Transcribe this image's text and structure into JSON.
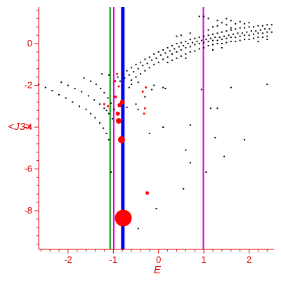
{
  "chart_data": {
    "type": "scatter",
    "xlabel": "E",
    "ylabel": "<J3>",
    "xlim": [
      -2.65,
      2.55
    ],
    "ylim": [
      -9.85,
      1.75
    ],
    "grid": false,
    "x_ticks": [
      -2,
      -1,
      0,
      1,
      2
    ],
    "y_ticks": [
      0,
      -2,
      -4,
      -6,
      -8
    ],
    "colors": {
      "axis": "#e00000",
      "dots": "#000000",
      "markers": "#ff0000",
      "line_green": "#009900",
      "line_magenta": "#dd00dd",
      "line_blue": "#0000ff",
      "line_magenta2": "#dd00dd"
    },
    "vertical_lines": [
      {
        "x": -1.07,
        "color": "#009900",
        "width": 2
      },
      {
        "x": -0.99,
        "color": "#dd00dd",
        "width": 2
      },
      {
        "x": -0.79,
        "color": "#0000ff",
        "width": 5
      },
      {
        "x": 0.99,
        "color": "#dd00dd",
        "width": 2
      }
    ],
    "red_markers": [
      {
        "x": -0.78,
        "y": -8.35,
        "size": 12
      },
      {
        "x": -0.82,
        "y": -4.6,
        "size": 5
      },
      {
        "x": -0.88,
        "y": -3.7,
        "size": 4
      },
      {
        "x": -0.9,
        "y": -3.35,
        "size": 3
      },
      {
        "x": -0.86,
        "y": -2.95,
        "size": 3
      },
      {
        "x": -0.8,
        "y": -2.8,
        "size": 3.5
      },
      {
        "x": -0.95,
        "y": -2.55,
        "size": 2
      },
      {
        "x": -0.88,
        "y": -2.05,
        "size": 1.5
      },
      {
        "x": -0.96,
        "y": -1.8,
        "size": 1.5
      },
      {
        "x": -0.92,
        "y": -1.45,
        "size": 1.5
      },
      {
        "x": -0.3,
        "y": -3.1,
        "size": 1.5
      },
      {
        "x": -0.32,
        "y": -3.35,
        "size": 1.5
      },
      {
        "x": -0.28,
        "y": -2.1,
        "size": 1.5
      },
      {
        "x": -0.35,
        "y": -2.3,
        "size": 1.5
      },
      {
        "x": -1.12,
        "y": -3.0,
        "size": 1.5
      },
      {
        "x": -1.2,
        "y": -2.9,
        "size": 1.5
      },
      {
        "x": -0.25,
        "y": -7.15,
        "size": 2.5
      }
    ],
    "black_points": {
      "curve_a": [
        [
          -2.65,
          -1.95
        ],
        [
          -2.5,
          -2.1
        ],
        [
          -2.35,
          -2.25
        ],
        [
          -2.2,
          -2.45
        ],
        [
          -2.05,
          -2.6
        ],
        [
          -1.9,
          -2.8
        ],
        [
          -1.75,
          -3.0
        ],
        [
          -1.6,
          -3.15
        ],
        [
          -1.5,
          -3.35
        ],
        [
          -1.4,
          -3.55
        ],
        [
          -1.3,
          -3.8
        ],
        [
          -1.22,
          -4.05
        ],
        [
          -1.15,
          -4.3
        ]
      ],
      "curve_b": [
        [
          -2.15,
          -1.85
        ],
        [
          -2.0,
          -2.0
        ],
        [
          -1.85,
          -2.15
        ],
        [
          -1.7,
          -2.3
        ],
        [
          -1.55,
          -2.5
        ],
        [
          -1.42,
          -2.7
        ],
        [
          -1.3,
          -2.9
        ],
        [
          -1.2,
          -3.1
        ],
        [
          -1.1,
          -3.35
        ],
        [
          -1.02,
          -3.6
        ]
      ],
      "curve_c": [
        [
          -1.65,
          -1.65
        ],
        [
          -1.5,
          -1.8
        ],
        [
          -1.38,
          -1.95
        ],
        [
          -1.28,
          -2.15
        ],
        [
          -1.2,
          -2.35
        ],
        [
          -1.12,
          -2.6
        ],
        [
          -1.05,
          -2.85
        ],
        [
          -0.98,
          -3.15
        ]
      ],
      "upper_band": [
        [
          -0.9,
          -1.6
        ],
        [
          -0.8,
          -1.45
        ],
        [
          -0.7,
          -1.3
        ],
        [
          -0.6,
          -1.15
        ],
        [
          -0.5,
          -1.0
        ],
        [
          -0.4,
          -0.9
        ],
        [
          -0.3,
          -0.75
        ],
        [
          -0.2,
          -0.65
        ],
        [
          -0.1,
          -0.5
        ],
        [
          0.0,
          -0.4
        ],
        [
          0.1,
          -0.3
        ],
        [
          0.2,
          -0.2
        ],
        [
          0.3,
          -0.1
        ],
        [
          0.4,
          0.0
        ],
        [
          0.5,
          0.05
        ],
        [
          0.6,
          0.1
        ],
        [
          0.7,
          0.2
        ],
        [
          0.8,
          0.25
        ],
        [
          0.9,
          0.3
        ],
        [
          1.0,
          0.35
        ],
        [
          1.1,
          0.4
        ],
        [
          1.2,
          0.45
        ],
        [
          1.3,
          0.5
        ],
        [
          1.4,
          0.55
        ],
        [
          1.5,
          0.6
        ],
        [
          1.6,
          0.65
        ],
        [
          1.7,
          0.7
        ],
        [
          1.8,
          0.75
        ],
        [
          1.9,
          0.75
        ],
        [
          2.0,
          0.8
        ],
        [
          2.1,
          0.8
        ],
        [
          2.2,
          0.85
        ],
        [
          2.3,
          0.85
        ],
        [
          2.4,
          0.9
        ],
        [
          2.5,
          0.9
        ],
        [
          -0.85,
          -1.8
        ],
        [
          -0.75,
          -1.65
        ],
        [
          -0.65,
          -1.5
        ],
        [
          -0.55,
          -1.35
        ],
        [
          -0.45,
          -1.2
        ],
        [
          -0.35,
          -1.05
        ],
        [
          -0.25,
          -0.95
        ],
        [
          -0.15,
          -0.8
        ],
        [
          -0.05,
          -0.7
        ],
        [
          0.05,
          -0.55
        ],
        [
          0.15,
          -0.45
        ],
        [
          0.25,
          -0.35
        ],
        [
          0.35,
          -0.25
        ],
        [
          0.45,
          -0.15
        ],
        [
          0.55,
          -0.1
        ],
        [
          0.65,
          0.0
        ],
        [
          0.75,
          0.05
        ],
        [
          0.85,
          0.1
        ],
        [
          0.95,
          0.15
        ],
        [
          1.05,
          0.2
        ],
        [
          1.15,
          0.25
        ],
        [
          1.25,
          0.3
        ],
        [
          1.35,
          0.3
        ],
        [
          1.45,
          0.35
        ],
        [
          1.55,
          0.4
        ],
        [
          1.65,
          0.45
        ],
        [
          1.75,
          0.5
        ],
        [
          1.85,
          0.5
        ],
        [
          1.95,
          0.55
        ],
        [
          2.05,
          0.6
        ],
        [
          2.15,
          0.6
        ],
        [
          2.25,
          0.65
        ],
        [
          2.35,
          0.7
        ],
        [
          2.45,
          0.7
        ],
        [
          -0.6,
          -1.75
        ],
        [
          -0.5,
          -1.6
        ],
        [
          -0.4,
          -1.45
        ],
        [
          -0.3,
          -1.3
        ],
        [
          -0.2,
          -1.15
        ],
        [
          -0.1,
          -1.0
        ],
        [
          0.0,
          -0.9
        ],
        [
          0.1,
          -0.75
        ],
        [
          0.2,
          -0.65
        ],
        [
          0.3,
          -0.5
        ],
        [
          0.4,
          -0.4
        ],
        [
          0.5,
          -0.3
        ],
        [
          0.6,
          -0.2
        ],
        [
          0.7,
          -0.15
        ],
        [
          0.8,
          -0.05
        ],
        [
          0.9,
          0.0
        ],
        [
          1.0,
          0.05
        ],
        [
          1.1,
          0.1
        ],
        [
          1.2,
          0.15
        ],
        [
          1.3,
          0.15
        ],
        [
          1.4,
          0.2
        ],
        [
          1.5,
          0.25
        ],
        [
          1.6,
          0.3
        ],
        [
          1.7,
          0.3
        ],
        [
          1.8,
          0.35
        ],
        [
          1.9,
          0.4
        ],
        [
          2.0,
          0.4
        ],
        [
          2.1,
          0.45
        ],
        [
          2.2,
          0.5
        ],
        [
          2.3,
          0.5
        ],
        [
          2.4,
          0.55
        ],
        [
          2.5,
          0.55
        ],
        [
          0.2,
          -0.9
        ],
        [
          0.3,
          -0.8
        ],
        [
          0.4,
          -0.7
        ],
        [
          0.5,
          -0.6
        ],
        [
          0.6,
          -0.5
        ],
        [
          0.7,
          -0.4
        ],
        [
          0.8,
          -0.35
        ],
        [
          0.9,
          -0.25
        ],
        [
          1.0,
          -0.2
        ],
        [
          1.1,
          -0.1
        ],
        [
          1.2,
          -0.05
        ],
        [
          1.3,
          0.0
        ],
        [
          1.4,
          0.0
        ],
        [
          1.5,
          0.05
        ],
        [
          1.6,
          0.1
        ],
        [
          1.7,
          0.1
        ],
        [
          1.8,
          0.15
        ],
        [
          1.9,
          0.2
        ],
        [
          2.0,
          0.2
        ],
        [
          2.1,
          0.25
        ],
        [
          2.2,
          0.3
        ],
        [
          2.3,
          0.3
        ],
        [
          2.4,
          0.35
        ],
        [
          1.2,
          0.8
        ],
        [
          1.4,
          1.0
        ],
        [
          1.6,
          1.1
        ],
        [
          1.8,
          1.05
        ],
        [
          1.9,
          0.95
        ],
        [
          2.0,
          1.0
        ],
        [
          1.7,
          0.95
        ],
        [
          1.5,
          0.9
        ],
        [
          1.3,
          0.85
        ],
        [
          0.9,
          1.3
        ],
        [
          1.0,
          1.3
        ],
        [
          1.1,
          1.2
        ],
        [
          1.3,
          1.1
        ],
        [
          1.5,
          1.2
        ],
        [
          1.6,
          0.75
        ],
        [
          1.1,
          0.65
        ],
        [
          0.7,
          0.5
        ],
        [
          0.5,
          0.4
        ],
        [
          0.4,
          0.35
        ],
        [
          1.2,
          -0.3
        ],
        [
          1.4,
          -0.2
        ],
        [
          2.2,
          0.1
        ],
        [
          2.4,
          0.2
        ],
        [
          0.6,
          -0.7
        ]
      ],
      "scattered": [
        [
          -1.25,
          -1.45
        ],
        [
          -1.1,
          -1.5
        ],
        [
          -0.6,
          -1.95
        ],
        [
          -0.65,
          -2.1
        ],
        [
          -0.1,
          -2.0
        ],
        [
          -0.15,
          -2.2
        ],
        [
          0.1,
          -2.1
        ],
        [
          0.15,
          -2.15
        ],
        [
          -0.45,
          -1.85
        ],
        [
          1.6,
          -2.1
        ],
        [
          2.4,
          -1.95
        ],
        [
          0.95,
          -2.2
        ],
        [
          -0.3,
          -2.55
        ],
        [
          -0.5,
          -2.9
        ],
        [
          -0.7,
          -3.05
        ],
        [
          -0.45,
          -3.15
        ],
        [
          1.15,
          -3.1
        ],
        [
          1.3,
          -3.1
        ],
        [
          0.7,
          -3.9
        ],
        [
          0.1,
          -4.0
        ],
        [
          -0.2,
          -4.3
        ],
        [
          1.25,
          -4.5
        ],
        [
          1.9,
          -4.6
        ],
        [
          0.6,
          -5.1
        ],
        [
          1.45,
          -5.4
        ],
        [
          0.7,
          -5.7
        ],
        [
          1.05,
          -6.15
        ],
        [
          -1.05,
          -6.15
        ],
        [
          0.55,
          -6.95
        ],
        [
          -0.05,
          -7.9
        ],
        [
          -0.45,
          -8.85
        ],
        [
          -1.1,
          -4.6
        ],
        [
          -1.15,
          -3.2
        ]
      ]
    }
  }
}
